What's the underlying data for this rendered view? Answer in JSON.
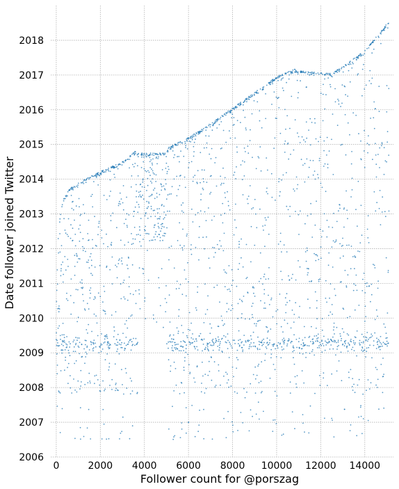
{
  "chart_data": {
    "type": "scatter",
    "title": "",
    "xlabel": "Follower count for @porszag",
    "ylabel": "Date follower joined Twitter",
    "xlim": [
      -250,
      15300
    ],
    "ylim": [
      2006.0,
      2019.0
    ],
    "xticks": [
      0,
      2000,
      4000,
      6000,
      8000,
      10000,
      12000,
      14000
    ],
    "xtick_labels": [
      "0",
      "2000",
      "4000",
      "6000",
      "8000",
      "10000",
      "12000",
      "14000"
    ],
    "yticks": [
      2006,
      2007,
      2008,
      2009,
      2010,
      2011,
      2012,
      2013,
      2014,
      2015,
      2016,
      2017,
      2018
    ],
    "ytick_labels": [
      "2006",
      "2007",
      "2008",
      "2009",
      "2010",
      "2011",
      "2012",
      "2013",
      "2014",
      "2015",
      "2016",
      "2017",
      "2018"
    ],
    "grid": true,
    "color": "#1f77b4",
    "point_count_approx": 15100,
    "upper_envelope": {
      "x": [
        0,
        100,
        300,
        600,
        1000,
        2000,
        3000,
        3600,
        3700,
        5000,
        5100,
        6000,
        7000,
        8000,
        9000,
        10000,
        10800,
        11000,
        12500,
        13000,
        14000,
        15100
      ],
      "y": [
        2010.3,
        2012.6,
        2013.4,
        2013.72,
        2013.9,
        2014.22,
        2014.5,
        2014.83,
        2014.75,
        2014.75,
        2014.92,
        2015.2,
        2015.6,
        2016.05,
        2016.5,
        2016.95,
        2017.17,
        2017.12,
        2017.05,
        2017.25,
        2017.7,
        2018.55
      ]
    },
    "dense_bands": [
      {
        "x": [
          0,
          3700
        ],
        "y_center": 2009.25,
        "y_halfwidth": 0.18
      },
      {
        "x": [
          5000,
          15100
        ],
        "y_center": 2009.28,
        "y_halfwidth": 0.2
      }
    ],
    "dense_regions": [
      {
        "x": [
          3500,
          5100
        ],
        "y": [
          2012.2,
          2014.8
        ]
      }
    ],
    "sparse_gap": {
      "x": [
        3700,
        5000
      ],
      "y": [
        2006.0,
        2009.6
      ]
    }
  }
}
